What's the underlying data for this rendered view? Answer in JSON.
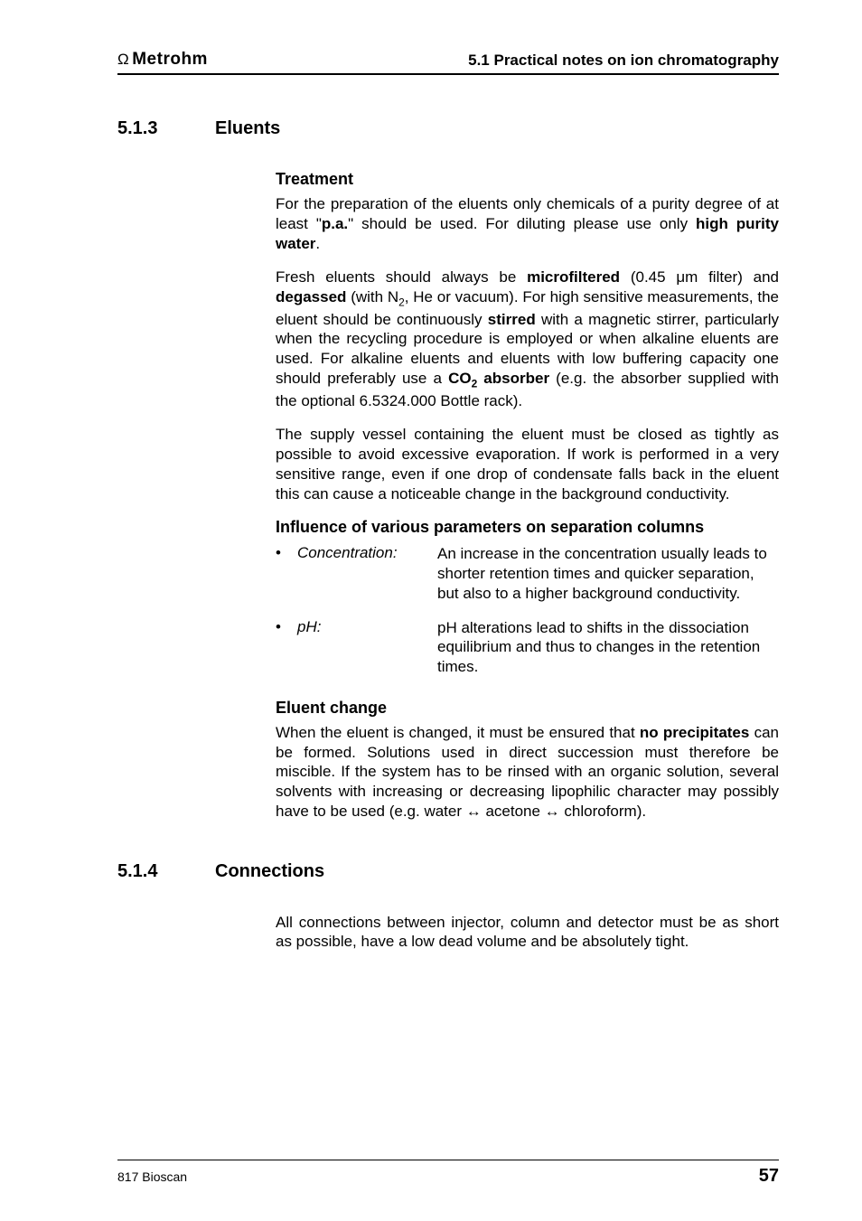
{
  "header": {
    "brand": "Metrohm",
    "chapter": "5.1  Practical notes on ion chromatography"
  },
  "sections": [
    {
      "number": "5.1.3",
      "title": "Eluents",
      "blocks": [
        {
          "type": "subhead",
          "text": "Treatment"
        },
        {
          "type": "para",
          "runs": [
            {
              "t": "For the preparation of the eluents only chemicals of a purity degree of at least \""
            },
            {
              "t": "p.a.",
              "b": true
            },
            {
              "t": "\" should be used. For diluting please use only "
            },
            {
              "t": "high purity water",
              "b": true
            },
            {
              "t": "."
            }
          ]
        },
        {
          "type": "para",
          "runs": [
            {
              "t": "Fresh eluents should always be "
            },
            {
              "t": "microfiltered",
              "b": true
            },
            {
              "t": " (0.45 μm filter) and "
            },
            {
              "t": "degassed",
              "b": true
            },
            {
              "t": " (with N"
            },
            {
              "t": "2",
              "sub": true
            },
            {
              "t": ", He or vacuum). For high sensitive measurements, the eluent should be continuously "
            },
            {
              "t": "stirred",
              "b": true
            },
            {
              "t": " with a magnetic stirrer, particularly when the recycling procedure is employed or when alkaline eluents are used. For alkaline eluents and eluents with low buffering capacity one should preferably use a "
            },
            {
              "t": "CO",
              "b": true
            },
            {
              "t": "2",
              "b": true,
              "sub": true
            },
            {
              "t": " absorber",
              "b": true
            },
            {
              "t": " (e.g. the absorber supplied with the optional 6.5324.000 Bottle rack)."
            }
          ]
        },
        {
          "type": "para",
          "runs": [
            {
              "t": "The supply vessel containing the eluent must be closed as tightly as possible to avoid excessive evaporation. If work is performed in a very sensitive range, even if one drop of condensate falls back in the eluent this can cause a noticeable change in the background conductivity."
            }
          ]
        },
        {
          "type": "subhead",
          "text": "Influence of various parameters on separation columns"
        },
        {
          "type": "params",
          "items": [
            {
              "label": "Concentration:",
              "desc": "An increase in the concentration usually leads to shorter retention times and quicker separation, but also to a higher background conductivity."
            },
            {
              "label": "pH:",
              "desc": "pH alterations lead to shifts in the dissociation equilibrium and thus to changes in the retention times."
            }
          ]
        },
        {
          "type": "subhead",
          "text": "Eluent change"
        },
        {
          "type": "para",
          "runs": [
            {
              "t": "When the eluent is changed, it must be ensured that "
            },
            {
              "t": "no precipitates",
              "b": true
            },
            {
              "t": " can be formed. Solutions used in direct succession must therefore be miscible. If the system has to be rinsed with an organic solution, several solvents with increasing or decreasing lipophilic character may possibly have to be used (e.g. water ↔ acetone ↔ chloroform)."
            }
          ]
        }
      ]
    },
    {
      "number": "5.1.4",
      "title": "Connections",
      "blocks": [
        {
          "type": "para",
          "runs": [
            {
              "t": "All connections between injector, column and detector must be as short as possible, have a low dead volume and be absolutely tight."
            }
          ]
        }
      ]
    }
  ],
  "footer": {
    "left": "817 Bioscan",
    "page": "57"
  }
}
